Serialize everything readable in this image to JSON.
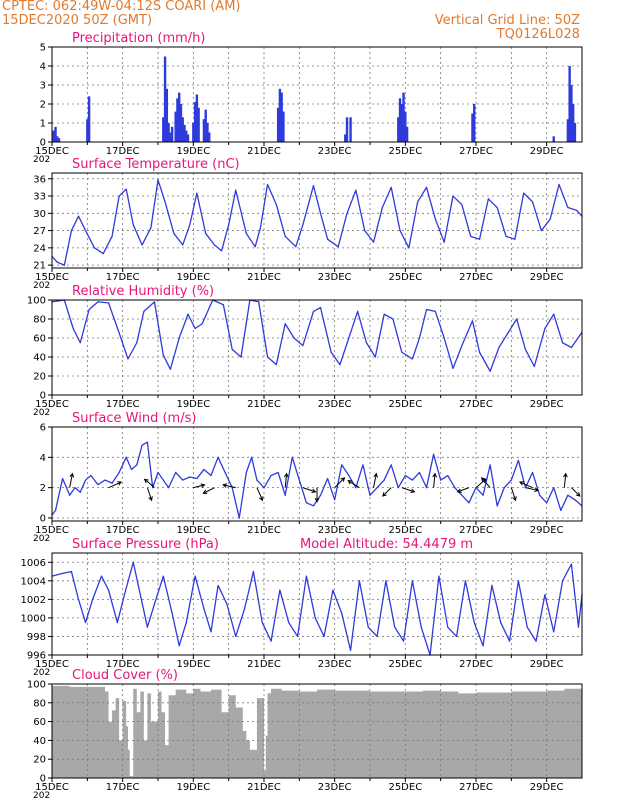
{
  "header": {
    "left_line1": "CPTEC:   062:49W-04:12S   COARI (AM)",
    "left_line2": "15DEC2020  50Z (GMT)",
    "right_line1": "Vertical Grid Line: 50Z",
    "right_line2": "TQ0126L028"
  },
  "colors": {
    "header": "#e07a30",
    "title": "#e8157a",
    "line": "#2e3bdc",
    "cloud": "#a8a8a8",
    "arrow": "#000000"
  },
  "chart_data": [
    {
      "id": "precip",
      "type": "bar",
      "title": "Precipitation (mm/h)",
      "ylim": [
        0,
        5
      ],
      "yticks": [
        0,
        1,
        2,
        3,
        4,
        5
      ],
      "xlim": [
        0,
        15
      ],
      "xticks": [
        "15DEC",
        "17DEC",
        "19DEC",
        "21DEC",
        "23DEC",
        "25DEC",
        "27DEC",
        "29DEC"
      ],
      "xtick_days": [
        0,
        2,
        4,
        6,
        8,
        10,
        12,
        14
      ],
      "year_label": "202",
      "x": [
        0.05,
        0.1,
        0.15,
        0.2,
        1.0,
        1.05,
        3.15,
        3.2,
        3.25,
        3.3,
        3.35,
        3.4,
        3.5,
        3.55,
        3.6,
        3.65,
        3.7,
        3.75,
        3.8,
        3.85,
        4.0,
        4.05,
        4.1,
        4.15,
        4.3,
        4.35,
        4.4,
        4.45,
        6.4,
        6.45,
        6.5,
        6.55,
        8.3,
        8.35,
        8.45,
        9.8,
        9.85,
        9.9,
        9.95,
        10.0,
        10.05,
        11.9,
        11.95,
        14.2,
        14.6,
        14.65,
        14.7,
        14.75,
        14.8
      ],
      "values": [
        0.6,
        0.8,
        0.3,
        0.2,
        1.2,
        2.4,
        1.3,
        4.5,
        2.8,
        1.0,
        0.5,
        0.8,
        1.6,
        2.3,
        2.6,
        2.0,
        1.3,
        0.9,
        0.6,
        0.4,
        1.0,
        2.1,
        2.5,
        1.8,
        1.2,
        1.7,
        1.0,
        0.5,
        1.8,
        2.8,
        2.6,
        1.6,
        0.4,
        1.3,
        1.3,
        1.3,
        2.3,
        2.0,
        2.6,
        1.6,
        0.8,
        1.5,
        2.0,
        0.3,
        1.2,
        4.0,
        3.0,
        2.0,
        1.0
      ]
    },
    {
      "id": "temp",
      "type": "line",
      "title": "Surface Temperature (nC)",
      "ylim": [
        20.5,
        37
      ],
      "yticks": [
        21,
        24,
        27,
        30,
        33,
        36
      ],
      "xlim": [
        0,
        15
      ],
      "xticks": [
        "15DEC",
        "17DEC",
        "19DEC",
        "21DEC",
        "23DEC",
        "25DEC",
        "27DEC",
        "29DEC"
      ],
      "xtick_days": [
        0,
        2,
        4,
        6,
        8,
        10,
        12,
        14
      ],
      "year_label": "202",
      "x": [
        0,
        0.15,
        0.35,
        0.55,
        0.75,
        0.95,
        1.2,
        1.45,
        1.7,
        1.9,
        2.1,
        2.3,
        2.55,
        2.8,
        3.0,
        3.2,
        3.45,
        3.7,
        3.9,
        4.1,
        4.35,
        4.6,
        4.8,
        5.0,
        5.2,
        5.5,
        5.75,
        5.9,
        6.1,
        6.35,
        6.6,
        6.9,
        7.1,
        7.4,
        7.6,
        7.8,
        8.1,
        8.35,
        8.6,
        8.85,
        9.1,
        9.35,
        9.6,
        9.85,
        10.1,
        10.35,
        10.6,
        10.85,
        11.1,
        11.35,
        11.6,
        11.85,
        12.1,
        12.35,
        12.6,
        12.85,
        13.1,
        13.35,
        13.6,
        13.85,
        14.1,
        14.35,
        14.6,
        14.85,
        15.0
      ],
      "values": [
        22.5,
        21.5,
        21.0,
        27.0,
        29.5,
        27.0,
        24.0,
        23.0,
        26.0,
        33.0,
        34.2,
        28.0,
        24.5,
        27.5,
        35.8,
        32.0,
        26.5,
        24.5,
        28.0,
        33.5,
        26.5,
        24.5,
        23.5,
        28.0,
        34.0,
        26.5,
        24.2,
        27.5,
        35.0,
        31.5,
        26.0,
        24.2,
        28.0,
        34.8,
        30.0,
        25.5,
        24.2,
        30.0,
        34.0,
        27.0,
        25.0,
        31.0,
        34.5,
        27.0,
        24.0,
        32.0,
        34.5,
        29.0,
        25.0,
        33.0,
        31.5,
        26.0,
        25.5,
        32.5,
        31.0,
        26.0,
        25.5,
        33.5,
        32.0,
        27.0,
        29.0,
        35.0,
        31.0,
        30.5,
        29.5
      ]
    },
    {
      "id": "rh",
      "type": "line",
      "title": "Relative Humidity (%)",
      "ylim": [
        0,
        100
      ],
      "yticks": [
        0,
        20,
        40,
        60,
        80,
        100
      ],
      "xlim": [
        0,
        15
      ],
      "xticks": [
        "15DEC",
        "17DEC",
        "19DEC",
        "21DEC",
        "23DEC",
        "25DEC",
        "27DEC",
        "29DEC"
      ],
      "xtick_days": [
        0,
        2,
        4,
        6,
        8,
        10,
        12,
        14
      ],
      "year_label": "202",
      "x": [
        0,
        0.35,
        0.6,
        0.8,
        1.05,
        1.3,
        1.6,
        1.95,
        2.15,
        2.4,
        2.6,
        2.9,
        3.15,
        3.35,
        3.6,
        3.85,
        4.05,
        4.25,
        4.55,
        4.85,
        5.1,
        5.35,
        5.6,
        5.85,
        6.1,
        6.35,
        6.6,
        6.85,
        7.1,
        7.4,
        7.6,
        7.9,
        8.15,
        8.4,
        8.65,
        8.9,
        9.15,
        9.4,
        9.65,
        9.9,
        10.2,
        10.4,
        10.6,
        10.85,
        11.1,
        11.35,
        11.6,
        11.9,
        12.1,
        12.4,
        12.65,
        12.9,
        13.15,
        13.4,
        13.65,
        13.95,
        14.2,
        14.45,
        14.7,
        15.0
      ],
      "values": [
        98,
        100,
        70,
        55,
        90,
        98,
        97,
        60,
        38,
        55,
        88,
        98,
        42,
        27,
        60,
        85,
        70,
        75,
        100,
        95,
        48,
        40,
        100,
        98,
        40,
        32,
        75,
        60,
        52,
        88,
        92,
        45,
        32,
        60,
        88,
        55,
        40,
        85,
        80,
        45,
        38,
        60,
        90,
        88,
        60,
        28,
        52,
        78,
        45,
        25,
        50,
        65,
        80,
        48,
        30,
        70,
        85,
        55,
        50,
        66
      ]
    },
    {
      "id": "wind",
      "type": "line",
      "title": "Surface Wind (m/s)",
      "ylim": [
        -0.2,
        6
      ],
      "yticks": [
        0,
        2,
        4,
        6
      ],
      "xlim": [
        0,
        15
      ],
      "xticks": [
        "15DEC",
        "17DEC",
        "19DEC",
        "21DEC",
        "23DEC",
        "25DEC",
        "27DEC",
        "29DEC"
      ],
      "xtick_days": [
        0,
        2,
        4,
        6,
        8,
        10,
        12,
        14
      ],
      "year_label": "202",
      "x": [
        0,
        0.1,
        0.3,
        0.5,
        0.65,
        0.8,
        0.95,
        1.1,
        1.3,
        1.5,
        1.7,
        1.9,
        2.1,
        2.25,
        2.4,
        2.55,
        2.7,
        2.85,
        3.0,
        3.15,
        3.3,
        3.5,
        3.7,
        3.9,
        4.1,
        4.3,
        4.5,
        4.7,
        4.9,
        5.1,
        5.3,
        5.5,
        5.65,
        5.8,
        6.0,
        6.2,
        6.4,
        6.6,
        6.8,
        7.0,
        7.2,
        7.4,
        7.6,
        7.8,
        8.0,
        8.2,
        8.4,
        8.6,
        8.8,
        9.0,
        9.2,
        9.4,
        9.6,
        9.8,
        10.0,
        10.2,
        10.4,
        10.6,
        10.8,
        11.0,
        11.2,
        11.4,
        11.6,
        11.8,
        12.0,
        12.2,
        12.4,
        12.6,
        12.8,
        13.0,
        13.2,
        13.4,
        13.6,
        13.8,
        14.0,
        14.2,
        14.4,
        14.6,
        14.8,
        15.0
      ],
      "values": [
        0.2,
        0.5,
        2.6,
        1.5,
        2.0,
        1.7,
        2.5,
        2.8,
        2.2,
        2.5,
        2.3,
        3.0,
        4.0,
        3.2,
        3.5,
        4.8,
        5.0,
        2.0,
        3.0,
        2.5,
        2.0,
        3.0,
        2.5,
        2.7,
        2.6,
        3.2,
        2.8,
        4.0,
        3.0,
        2.0,
        0.0,
        3.0,
        4.0,
        2.5,
        2.0,
        2.8,
        3.0,
        1.5,
        4.0,
        2.5,
        1.0,
        0.8,
        1.5,
        2.6,
        1.2,
        3.5,
        2.8,
        2.0,
        3.5,
        1.5,
        2.0,
        2.5,
        3.5,
        2.0,
        2.8,
        2.5,
        3.0,
        2.0,
        4.2,
        2.5,
        2.8,
        2.0,
        1.5,
        1.0,
        2.0,
        1.5,
        3.5,
        0.8,
        2.0,
        2.5,
        3.8,
        2.0,
        3.0,
        1.5,
        1.0,
        2.0,
        0.5,
        1.5,
        1.2,
        0.8
      ],
      "arrows": [
        {
          "x": 0.5,
          "u": 0.2,
          "v": 1.0
        },
        {
          "x": 1.6,
          "u": 0.9,
          "v": 0.4
        },
        {
          "x": 2.7,
          "u": 0.3,
          "v": -0.9
        },
        {
          "x": 2.9,
          "u": -0.7,
          "v": 0.6
        },
        {
          "x": 4.0,
          "u": 0.8,
          "v": 0.2
        },
        {
          "x": 4.6,
          "u": -0.8,
          "v": -0.4
        },
        {
          "x": 5.2,
          "u": -0.9,
          "v": 0.2
        },
        {
          "x": 5.8,
          "u": 0.4,
          "v": -0.9
        },
        {
          "x": 6.6,
          "u": 0.1,
          "v": 1.0
        },
        {
          "x": 7.1,
          "u": 0.9,
          "v": -0.3
        },
        {
          "x": 7.5,
          "u": 0.0,
          "v": -1.0
        },
        {
          "x": 8.0,
          "u": 0.7,
          "v": 0.7
        },
        {
          "x": 8.7,
          "u": -0.8,
          "v": 0.5
        },
        {
          "x": 9.1,
          "u": 0.2,
          "v": 1.0
        },
        {
          "x": 9.6,
          "u": -0.6,
          "v": -0.6
        },
        {
          "x": 9.9,
          "u": 0.9,
          "v": -0.3
        },
        {
          "x": 10.8,
          "u": 0.1,
          "v": 1.0
        },
        {
          "x": 11.8,
          "u": -0.8,
          "v": -0.3
        },
        {
          "x": 12.0,
          "u": 0.7,
          "v": 0.6
        },
        {
          "x": 12.4,
          "u": -0.6,
          "v": 0.7
        },
        {
          "x": 13.0,
          "u": 0.3,
          "v": -0.9
        },
        {
          "x": 13.4,
          "u": 0.9,
          "v": -0.2
        },
        {
          "x": 13.6,
          "u": -0.9,
          "v": 0.4
        },
        {
          "x": 14.5,
          "u": 0.1,
          "v": 1.0
        },
        {
          "x": 14.7,
          "u": 0.6,
          "v": -0.6
        }
      ]
    },
    {
      "id": "pressure",
      "type": "line",
      "title": "Surface Pressure (hPa)",
      "annotation": "Model Altitude: 54.4479 m",
      "ylim": [
        996,
        1007
      ],
      "yticks": [
        996,
        998,
        1000,
        1002,
        1004,
        1006
      ],
      "xlim": [
        0,
        15
      ],
      "xticks": [
        "15DEC",
        "17DEC",
        "19DEC",
        "21DEC",
        "23DEC",
        "25DEC",
        "27DEC",
        "29DEC"
      ],
      "xtick_days": [
        0,
        2,
        4,
        6,
        8,
        10,
        12,
        14
      ],
      "year_label": "202",
      "x": [
        0,
        0.3,
        0.55,
        0.75,
        0.95,
        1.15,
        1.4,
        1.6,
        1.85,
        2.05,
        2.3,
        2.5,
        2.7,
        2.9,
        3.15,
        3.4,
        3.6,
        3.8,
        4.05,
        4.3,
        4.5,
        4.7,
        4.95,
        5.2,
        5.45,
        5.7,
        5.95,
        6.2,
        6.45,
        6.7,
        6.95,
        7.2,
        7.45,
        7.7,
        7.95,
        8.2,
        8.45,
        8.7,
        8.95,
        9.2,
        9.45,
        9.7,
        9.95,
        10.2,
        10.45,
        10.7,
        10.95,
        11.2,
        11.45,
        11.7,
        11.95,
        12.2,
        12.45,
        12.7,
        12.95,
        13.2,
        13.45,
        13.7,
        13.95,
        14.2,
        14.45,
        14.7,
        14.9,
        15.0
      ],
      "values": [
        1004.5,
        1004.8,
        1005.0,
        1002.0,
        999.5,
        1002.0,
        1004.5,
        1003.0,
        999.5,
        1002.5,
        1006.0,
        1002.5,
        999.0,
        1001.5,
        1004.5,
        1000.5,
        997.0,
        999.5,
        1004.5,
        1001.0,
        998.5,
        1003.5,
        1001.5,
        998.0,
        1001.0,
        1005.0,
        999.5,
        997.5,
        1003.0,
        999.5,
        998.0,
        1004.5,
        1000.0,
        998.0,
        1003.0,
        1000.5,
        996.5,
        1004.0,
        999.0,
        998.0,
        1004.0,
        999.0,
        997.5,
        1004.0,
        999.0,
        996.0,
        1004.5,
        999.0,
        998.0,
        1004.0,
        999.5,
        997.0,
        1003.5,
        999.5,
        997.5,
        1004.0,
        999.0,
        997.5,
        1002.5,
        998.5,
        1004.0,
        1005.8,
        999.0,
        1002.5
      ]
    },
    {
      "id": "cloud",
      "type": "area",
      "title": "Cloud Cover (%)",
      "ylim": [
        0,
        100
      ],
      "yticks": [
        0,
        20,
        40,
        60,
        80,
        100
      ],
      "xlim": [
        0,
        15
      ],
      "xticks": [
        "15DEC",
        "17DEC",
        "19DEC",
        "21DEC",
        "23DEC",
        "25DEC",
        "27DEC",
        "29DEC"
      ],
      "xtick_days": [
        0,
        2,
        4,
        6,
        8,
        10,
        12,
        14
      ],
      "year_label": "202",
      "x": [
        0,
        0.5,
        1.0,
        1.5,
        1.6,
        1.7,
        1.8,
        1.9,
        2.0,
        2.1,
        2.15,
        2.2,
        2.3,
        2.4,
        2.5,
        2.6,
        2.7,
        2.8,
        3.0,
        3.1,
        3.2,
        3.3,
        3.5,
        3.8,
        4.0,
        4.2,
        4.5,
        4.8,
        5.0,
        5.2,
        5.4,
        5.5,
        5.6,
        5.8,
        6.0,
        6.05,
        6.1,
        6.2,
        6.5,
        7.0,
        7.5,
        8.0,
        8.5,
        9.0,
        9.5,
        10.0,
        10.5,
        11.0,
        11.5,
        12.0,
        12.5,
        13.0,
        13.5,
        14.0,
        14.5,
        15.0
      ],
      "values": [
        98,
        97,
        97,
        92,
        60,
        72,
        85,
        40,
        82,
        55,
        30,
        2,
        95,
        70,
        92,
        40,
        90,
        60,
        92,
        70,
        35,
        88,
        94,
        90,
        95,
        92,
        94,
        70,
        88,
        75,
        50,
        40,
        30,
        85,
        8,
        45,
        90,
        95,
        93,
        92,
        94,
        93,
        93,
        92,
        92,
        92,
        93,
        92,
        90,
        91,
        91,
        92,
        92,
        93,
        95,
        96
      ]
    }
  ]
}
